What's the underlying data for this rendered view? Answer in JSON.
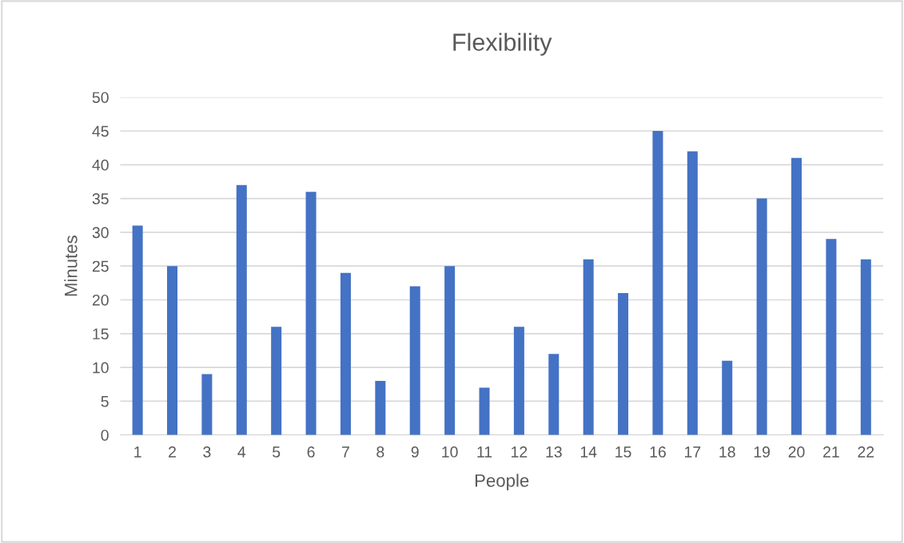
{
  "chart_data": {
    "type": "bar",
    "title": "Flexibility",
    "xlabel": "People",
    "ylabel": "Minutes",
    "categories": [
      "1",
      "2",
      "3",
      "4",
      "5",
      "6",
      "7",
      "8",
      "9",
      "10",
      "11",
      "12",
      "13",
      "14",
      "15",
      "16",
      "17",
      "18",
      "19",
      "20",
      "21",
      "22"
    ],
    "values": [
      31,
      25,
      9,
      37,
      16,
      36,
      24,
      8,
      22,
      25,
      7,
      16,
      12,
      26,
      21,
      45,
      42,
      11,
      35,
      41,
      29,
      26
    ],
    "color": "#4472c4",
    "ylim": [
      0,
      50
    ],
    "yticks": [
      0,
      5,
      10,
      15,
      20,
      25,
      30,
      35,
      40,
      45,
      50
    ],
    "grid": "y"
  }
}
